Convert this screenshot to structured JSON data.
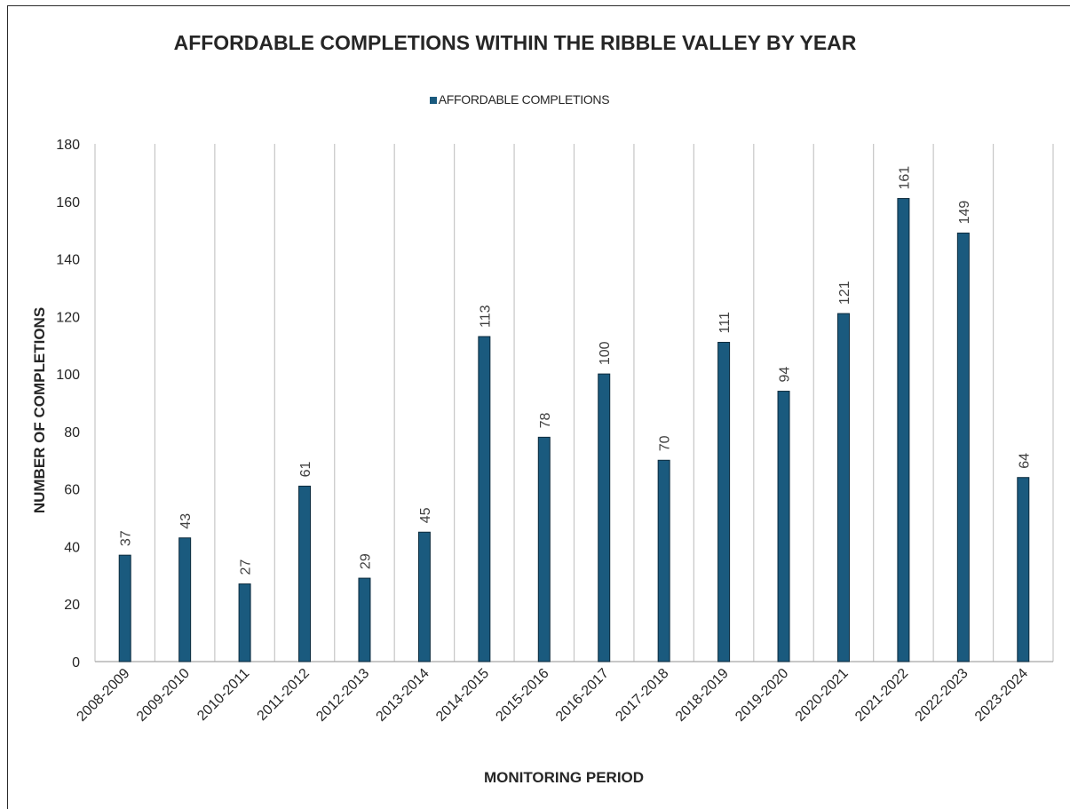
{
  "chart_data": {
    "type": "bar",
    "title": "AFFORDABLE COMPLETIONS WITHIN THE RIBBLE VALLEY BY YEAR",
    "xlabel": "MONITORING PERIOD",
    "ylabel": "NUMBER OF COMPLETIONS",
    "ylim": [
      0,
      180
    ],
    "yticks": [
      0,
      20,
      40,
      60,
      80,
      100,
      120,
      140,
      160,
      180
    ],
    "legend_position": "top-center",
    "grid": "vertical category separators",
    "bar_color": "#1a5a7e",
    "categories": [
      "2008-2009",
      "2009-2010",
      "2010-2011",
      "2011-2012",
      "2012-2013",
      "2013-2014",
      "2014-2015",
      "2015-2016",
      "2016-2017",
      "2017-2018",
      "2018-2019",
      "2019-2020",
      "2020-2021",
      "2021-2022",
      "2022-2023",
      "2023-2024"
    ],
    "series": [
      {
        "name": "AFFORDABLE COMPLETIONS",
        "values": [
          37,
          43,
          27,
          61,
          29,
          45,
          113,
          78,
          100,
          70,
          111,
          94,
          121,
          161,
          149,
          64
        ]
      }
    ]
  }
}
